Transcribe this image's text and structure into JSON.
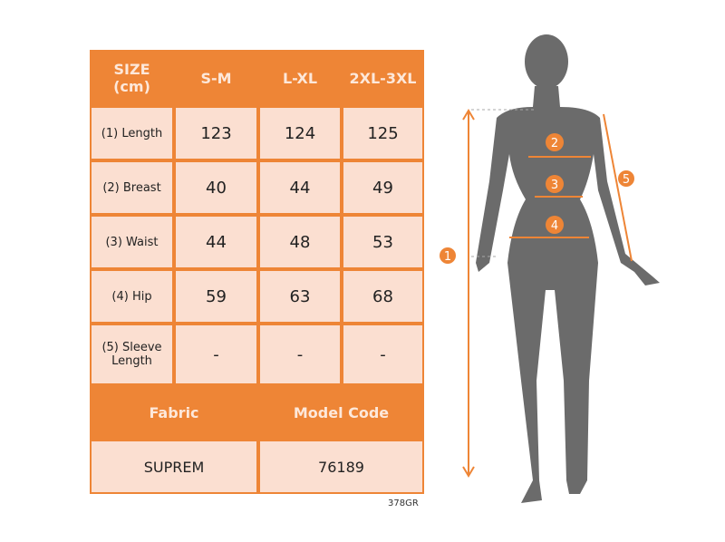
{
  "table": {
    "header": [
      "SIZE\n(cm)",
      "S-M",
      "L-XL",
      "2XL-3XL"
    ],
    "rows": [
      {
        "label": "(1) Length",
        "values": [
          "123",
          "124",
          "125"
        ]
      },
      {
        "label": "(2) Breast",
        "values": [
          "40",
          "44",
          "49"
        ]
      },
      {
        "label": "(3) Waist",
        "values": [
          "44",
          "48",
          "53"
        ]
      },
      {
        "label": "(4) Hip",
        "values": [
          "59",
          "63",
          "68"
        ]
      },
      {
        "label": "(5) Sleeve Length",
        "values": [
          "-",
          "-",
          "-"
        ]
      }
    ],
    "fabric_label": "Fabric",
    "model_code_label": "Model Code",
    "fabric_value": "SUPREM",
    "model_code_value": "76189"
  },
  "product_code": "378GR",
  "figure": {
    "markers": [
      "1",
      "2",
      "3",
      "4",
      "5"
    ]
  },
  "colors": {
    "accent": "#ee8536",
    "cell": "#fbdfd1",
    "silhouette": "#6b6b6b"
  }
}
